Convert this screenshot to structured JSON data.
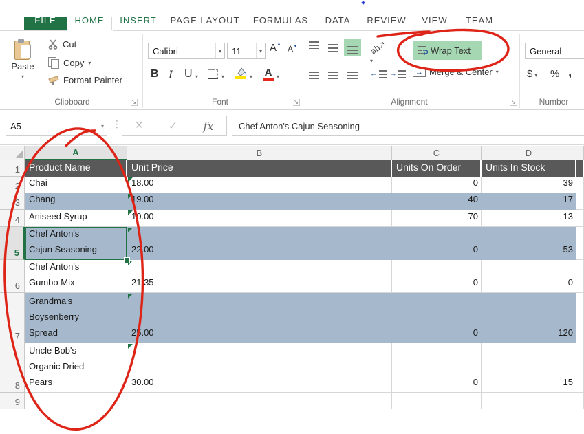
{
  "tabs": [
    {
      "label": "FILE",
      "style": "file"
    },
    {
      "label": "HOME",
      "style": "active"
    },
    {
      "label": "INSERT",
      "style": "hover"
    },
    {
      "label": "PAGE LAYOUT",
      "style": ""
    },
    {
      "label": "FORMULAS",
      "style": ""
    },
    {
      "label": "DATA",
      "style": ""
    },
    {
      "label": "REVIEW",
      "style": ""
    },
    {
      "label": "VIEW",
      "style": ""
    },
    {
      "label": "TEAM",
      "style": ""
    }
  ],
  "ribbon": {
    "clipboard": {
      "label": "Clipboard",
      "paste": "Paste",
      "cut": "Cut",
      "copy": "Copy",
      "format_painter": "Format Painter"
    },
    "font": {
      "label": "Font",
      "family": "Calibri",
      "size": "11",
      "bold": "B",
      "italic": "I",
      "underline": "U"
    },
    "alignment": {
      "label": "Alignment",
      "orientation": "ab",
      "wrap_text": "Wrap Text",
      "merge_center": "Merge & Center"
    },
    "number": {
      "label": "Number",
      "format": "General",
      "currency": "$",
      "percent": "%",
      "comma": ","
    }
  },
  "formula_bar": {
    "name_box": "A5",
    "fx": "fx",
    "value": "Chef Anton's Cajun Seasoning"
  },
  "sheet": {
    "column_letters": [
      "A",
      "B",
      "C",
      "D"
    ],
    "selected_cell": "A5",
    "selected_column": "A",
    "selected_row": 5,
    "rows": [
      {
        "n": 1,
        "header": true,
        "band": false,
        "cells": [
          "Product Name",
          "Unit Price",
          "Units On Order",
          "Units In Stock"
        ]
      },
      {
        "n": 2,
        "header": false,
        "band": false,
        "cells": [
          "Chai",
          "18.00",
          "0",
          "39"
        ]
      },
      {
        "n": 3,
        "header": false,
        "band": true,
        "cells": [
          "Chang",
          "19.00",
          "40",
          "17"
        ]
      },
      {
        "n": 4,
        "header": false,
        "band": false,
        "cells": [
          "Aniseed Syrup",
          "10.00",
          "70",
          "13"
        ]
      },
      {
        "n": 5,
        "header": false,
        "band": true,
        "selected": true,
        "cells": [
          "Chef Anton's\nCajun Seasoning",
          "22.00",
          "0",
          "53"
        ]
      },
      {
        "n": 6,
        "header": false,
        "band": false,
        "cells": [
          "Chef Anton's\nGumbo Mix",
          "21.35",
          "0",
          "0"
        ]
      },
      {
        "n": 7,
        "header": false,
        "band": true,
        "cells": [
          "Grandma's\nBoysenberry\nSpread",
          "25.00",
          "0",
          "120"
        ]
      },
      {
        "n": 8,
        "header": false,
        "band": false,
        "cells": [
          "Uncle Bob's\nOrganic Dried\nPears",
          "30.00",
          "0",
          "15"
        ]
      },
      {
        "n": 9,
        "header": false,
        "band": false,
        "cells": [
          "",
          "",
          "",
          ""
        ]
      }
    ]
  },
  "annotations": {
    "color": "#de2417",
    "wrap_text_circle": "hand-drawn red circle around Wrap Text button",
    "column_a_circle": "hand-drawn red ellipse around column A",
    "artifact_dot_color": "#2a3fd4"
  },
  "colors": {
    "excel_green": "#217346",
    "ribbon_highlight": "#a5d8b2",
    "band_row": "#a6b8cb",
    "table_header_bg": "#595959",
    "gridline": "#d6d6d6",
    "fill_yellow": "#ffe400",
    "font_red": "#e8281e",
    "accent_blue": "#2b579a"
  }
}
